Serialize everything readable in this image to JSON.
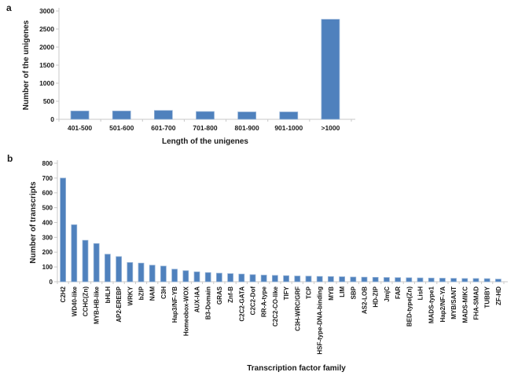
{
  "figure": {
    "panel_a_label": "a",
    "panel_b_label": "b"
  },
  "colors": {
    "bar_fill": "#4f81bd",
    "bar_border": "#95b3d7",
    "axis_line": "#c8c8c8",
    "text": "#1a1a1a",
    "background": "#ffffff"
  },
  "chart_data": [
    {
      "id": "unigene-length-distribution",
      "panel": "a",
      "type": "bar",
      "title": "",
      "xlabel": "Length of the unigenes",
      "ylabel": "Number of the unigenes",
      "categories": [
        "401-500",
        "501-600",
        "601-700",
        "701-800",
        "801-900",
        "901-1000",
        ">1000"
      ],
      "values": [
        230,
        230,
        245,
        215,
        205,
        205,
        2770
      ],
      "ylim": [
        0,
        3000
      ],
      "ytick_step": 500,
      "grid": false,
      "legend": false
    },
    {
      "id": "transcription-factor-families",
      "panel": "b",
      "type": "bar",
      "title": "",
      "xlabel": "Transcription factor family",
      "ylabel": "Number of transcripts",
      "categories": [
        "C2H2",
        "WD40-like",
        "CCHC(Zn)",
        "MYB-HB-like",
        "bHLH",
        "AP2-EREBP",
        "WRKY",
        "bZIP",
        "NAM",
        "C3H",
        "Hap3/NF-YB",
        "Homeobox-WOX",
        "AUX-IAA",
        "B3-Domain",
        "GRAS",
        "Znf-B",
        "C2C2-GATA",
        "C2C2-Dof",
        "RR-A-type",
        "C2C2-CO-like",
        "TIFY",
        "C3H-WRC/GRF",
        "TCP",
        "HSF-type-DNA-binding",
        "MYB",
        "LIM",
        "SBP",
        "AS2-LOB",
        "HD-ZIP",
        "JmjC",
        "FAR",
        "BED-type(Zn)",
        "LisH",
        "MADS-type1",
        "Hap2/NF-YA",
        "MYB/SANT",
        "MADS-MIKC",
        "FHA-SMAD",
        "TUBBY",
        "ZF-HD"
      ],
      "values": [
        700,
        385,
        280,
        258,
        186,
        170,
        130,
        126,
        112,
        106,
        85,
        75,
        67,
        62,
        58,
        55,
        52,
        48,
        45,
        43,
        41,
        39,
        38,
        36,
        35,
        34,
        32,
        31,
        30,
        29,
        28,
        27,
        26,
        25,
        24,
        23,
        22,
        22,
        21,
        18
      ],
      "ylim": [
        0,
        800
      ],
      "ytick_step": 100,
      "grid": false,
      "legend": false
    }
  ]
}
